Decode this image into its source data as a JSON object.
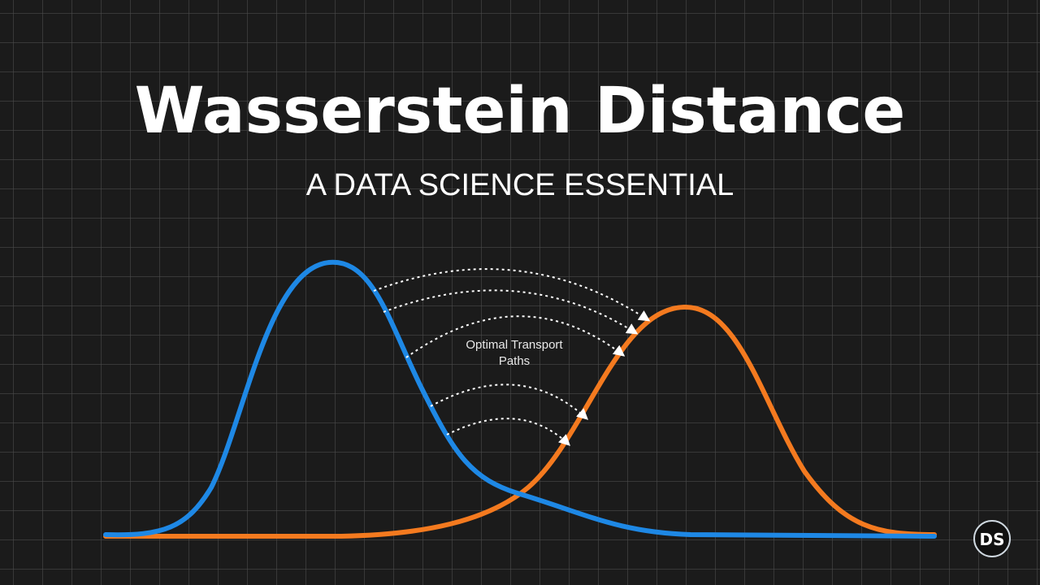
{
  "header": {
    "title": "Wasserstein Distance",
    "subtitle": "A DATA SCIENCE ESSENTIAL"
  },
  "annotation": {
    "lines": [
      "Optimal Transport",
      "Paths"
    ]
  },
  "logo": {
    "text": "DS"
  }
}
